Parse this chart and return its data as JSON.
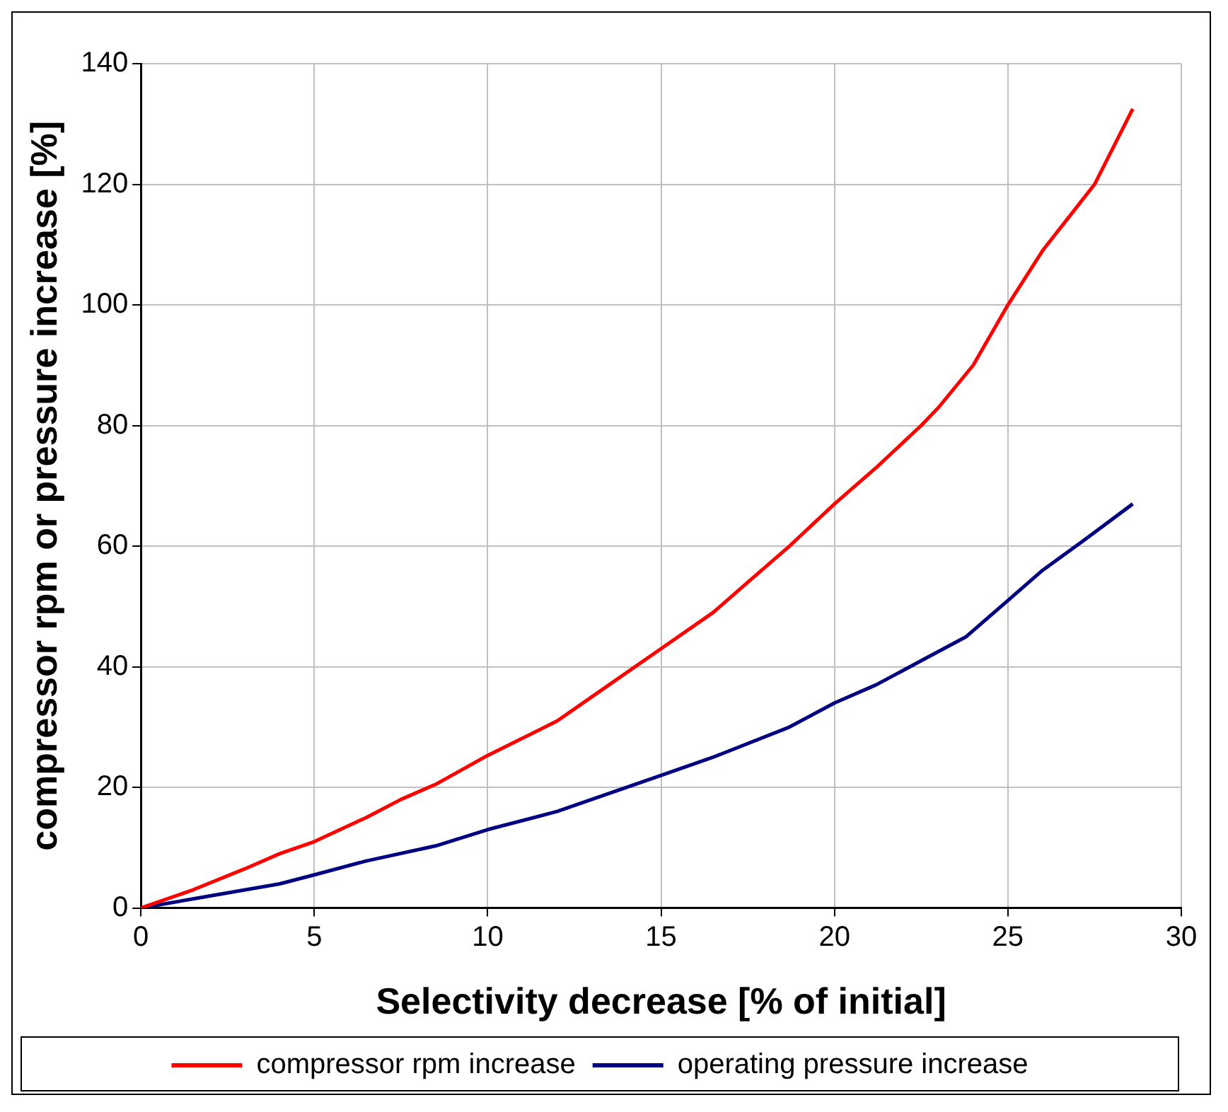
{
  "chart_data": {
    "type": "line",
    "xlabel": "Selectivity decrease [% of initial]",
    "ylabel": "compressor rpm or pressure increase [%]",
    "xlim": [
      0,
      30
    ],
    "xticks": [
      0,
      5,
      10,
      15,
      20,
      25,
      30
    ],
    "ylim": [
      0,
      140
    ],
    "yticks": [
      0,
      20,
      40,
      60,
      80,
      100,
      120,
      140
    ],
    "grid": true,
    "legend": "bottom",
    "marker": "none",
    "line_style": "solid",
    "series": [
      {
        "name": "compressor rpm increase",
        "color": "#ff0000",
        "x": [
          0,
          1.5,
          3,
          4,
          5,
          6.5,
          7.5,
          8.5,
          10,
          12,
          13.5,
          15,
          16.5,
          17.5,
          18.7,
          20,
          21.2,
          22.5,
          23,
          24,
          25,
          26,
          27.5,
          28.6
        ],
        "values": [
          0,
          3,
          6.5,
          9,
          11,
          15,
          18,
          20.5,
          25.3,
          31,
          37,
          43,
          49,
          54,
          60,
          67,
          73,
          80,
          83,
          90,
          100,
          109,
          120,
          132.5
        ]
      },
      {
        "name": "operating pressure increase",
        "color": "#000080",
        "x": [
          0,
          1.5,
          3,
          4,
          5,
          6.5,
          8.5,
          10,
          12,
          13.5,
          15,
          16.5,
          18.7,
          20,
          21.2,
          22.5,
          23.8,
          25,
          26,
          27.2,
          28.6
        ],
        "values": [
          0,
          1.5,
          3,
          4,
          5.5,
          7.8,
          10.3,
          13,
          16,
          19,
          22,
          25,
          30,
          34,
          37,
          41,
          45,
          51,
          56,
          61,
          67
        ]
      }
    ]
  }
}
